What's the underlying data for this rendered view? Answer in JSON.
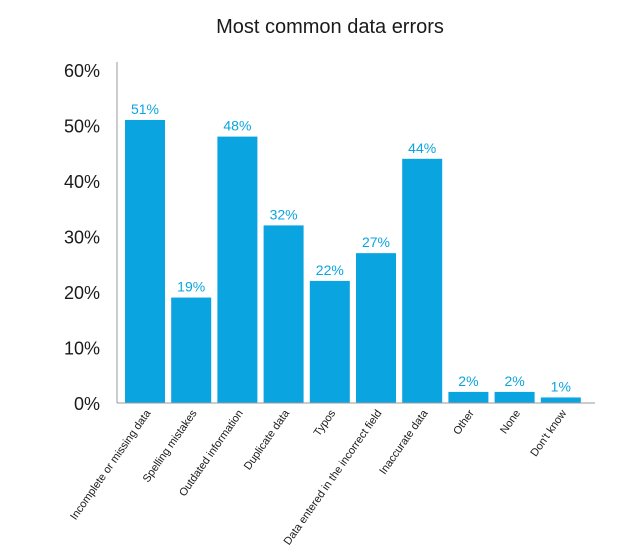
{
  "chart_data": {
    "type": "bar",
    "title": "Most common data errors",
    "xlabel": "",
    "ylabel": "",
    "categories": [
      "Incomplete or missing data",
      "Spelling mistakes",
      "Outdated information",
      "Duplicate data",
      "Typos",
      "Data entered in the incorrect field",
      "Inaccurate data",
      "Other",
      "None",
      "Don't know"
    ],
    "values": [
      51,
      19,
      48,
      32,
      22,
      27,
      44,
      2,
      2,
      1
    ],
    "data_labels": [
      "51%",
      "19%",
      "48%",
      "32%",
      "22%",
      "27%",
      "44%",
      "2%",
      "2%",
      "1%"
    ],
    "yticks": [
      "0%",
      "10%",
      "20%",
      "30%",
      "40%",
      "50%",
      "60%"
    ],
    "ylim": [
      0,
      60
    ],
    "grid": false,
    "legend": "none",
    "bar_color": "#0aa5e0",
    "label_color": "#0aa5e0"
  }
}
